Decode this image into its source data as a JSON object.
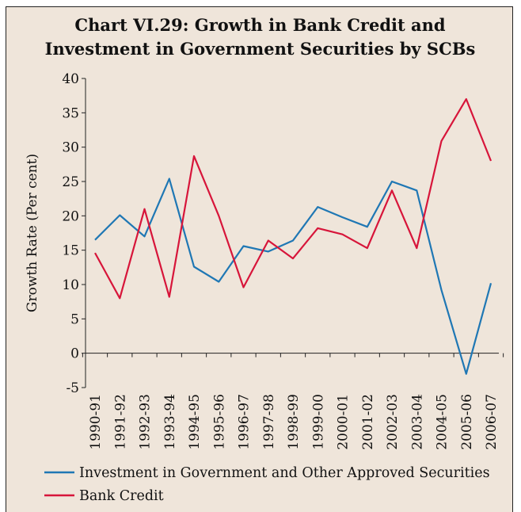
{
  "chart_data": {
    "type": "line",
    "title_line1": "Chart VI.29: Growth in Bank Credit and",
    "title_line2": "Investment in Government Securities by SCBs",
    "ylabel": "Growth Rate (Per cent)",
    "xlabel": "",
    "ylim": [
      -5,
      40
    ],
    "yticks": [
      -5,
      0,
      5,
      10,
      15,
      20,
      25,
      30,
      35,
      40
    ],
    "categories": [
      "1990-91",
      "1991-92",
      "1992-93",
      "1993-94",
      "1994-95",
      "1995-96",
      "1996-97",
      "1997-98",
      "1998-99",
      "1999-00",
      "2000-01",
      "2001-02",
      "2002-03",
      "2003-04",
      "2004-05",
      "2005-06",
      "2006-07"
    ],
    "series": [
      {
        "name": "Investment in Government and Other Approved Securities",
        "color": "#1f77b4",
        "values": [
          16.5,
          20.1,
          17.0,
          25.4,
          12.6,
          10.4,
          15.6,
          14.8,
          16.4,
          21.3,
          19.8,
          18.4,
          25.0,
          23.7,
          9.2,
          -3.0,
          10.2
        ]
      },
      {
        "name": "Bank Credit",
        "color": "#d7153a",
        "values": [
          14.6,
          8.0,
          21.0,
          8.2,
          28.7,
          20.0,
          9.6,
          16.4,
          13.8,
          18.2,
          17.3,
          15.3,
          23.7,
          15.3,
          30.9,
          37.0,
          28.0
        ]
      }
    ],
    "grid": false,
    "legend_position": "bottom"
  }
}
